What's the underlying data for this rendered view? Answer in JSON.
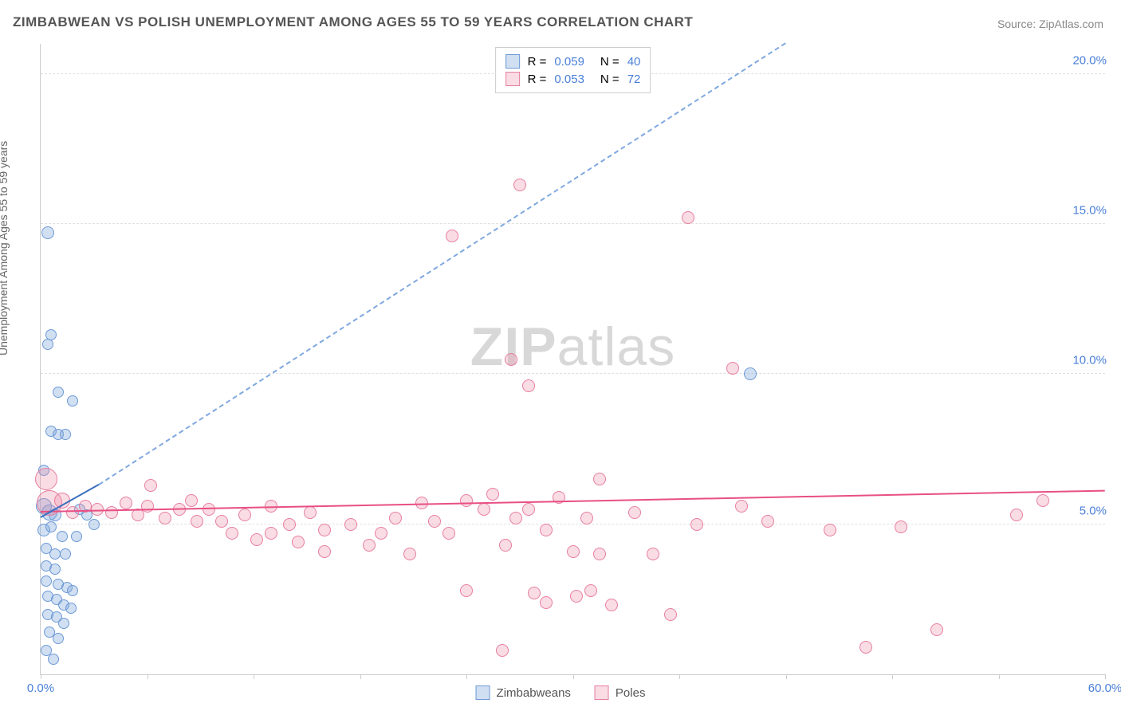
{
  "title": "ZIMBABWEAN VS POLISH UNEMPLOYMENT AMONG AGES 55 TO 59 YEARS CORRELATION CHART",
  "source": "Source: ZipAtlas.com",
  "ylabel": "Unemployment Among Ages 55 to 59 years",
  "watermark_a": "ZIP",
  "watermark_b": "atlas",
  "chart": {
    "type": "scatter",
    "xlim": [
      0,
      60
    ],
    "ylim": [
      0,
      21
    ],
    "x_ticks": [
      0,
      6,
      12,
      18,
      24,
      30,
      36,
      42,
      48,
      54,
      60
    ],
    "x_tick_labels": {
      "0": "0.0%",
      "60": "60.0%"
    },
    "y_ticks": [
      5,
      10,
      15,
      20
    ],
    "y_tick_labels": {
      "5": "5.0%",
      "10": "10.0%",
      "15": "15.0%",
      "20": "20.0%"
    },
    "grid_color": "#e0e0e0",
    "axis_color": "#cccccc",
    "label_color_axis": "#4a7fd8",
    "background": "#ffffff",
    "series": [
      {
        "name": "Zimbabweans",
        "fill": "rgba(122,162,219,0.35)",
        "stroke": "#6d9ad6",
        "r_value": "0.059",
        "n_value": "40",
        "trend": {
          "x1": 0,
          "y1": 5.2,
          "x2": 3.3,
          "y2": 6.3,
          "solid_color": "#3b6fbf",
          "dash_x2": 42,
          "dash_y2": 21,
          "dash_color": "#7fa8e0"
        },
        "points": [
          {
            "x": 0.4,
            "y": 14.7,
            "r": 8
          },
          {
            "x": 0.4,
            "y": 11.0,
            "r": 7
          },
          {
            "x": 0.6,
            "y": 11.3,
            "r": 7
          },
          {
            "x": 1.0,
            "y": 9.4,
            "r": 7
          },
          {
            "x": 1.8,
            "y": 9.1,
            "r": 7
          },
          {
            "x": 0.6,
            "y": 8.1,
            "r": 7
          },
          {
            "x": 1.0,
            "y": 8.0,
            "r": 7
          },
          {
            "x": 1.4,
            "y": 8.0,
            "r": 7
          },
          {
            "x": 0.2,
            "y": 6.8,
            "r": 7
          },
          {
            "x": 0.2,
            "y": 5.6,
            "r": 10
          },
          {
            "x": 0.5,
            "y": 5.4,
            "r": 10
          },
          {
            "x": 0.8,
            "y": 5.3,
            "r": 8
          },
          {
            "x": 0.2,
            "y": 4.8,
            "r": 8
          },
          {
            "x": 0.6,
            "y": 4.9,
            "r": 7
          },
          {
            "x": 1.2,
            "y": 4.6,
            "r": 7
          },
          {
            "x": 2.0,
            "y": 4.6,
            "r": 7
          },
          {
            "x": 0.3,
            "y": 4.2,
            "r": 7
          },
          {
            "x": 0.8,
            "y": 4.0,
            "r": 7
          },
          {
            "x": 1.4,
            "y": 4.0,
            "r": 7
          },
          {
            "x": 0.3,
            "y": 3.6,
            "r": 7
          },
          {
            "x": 0.8,
            "y": 3.5,
            "r": 7
          },
          {
            "x": 0.3,
            "y": 3.1,
            "r": 7
          },
          {
            "x": 1.0,
            "y": 3.0,
            "r": 7
          },
          {
            "x": 1.5,
            "y": 2.9,
            "r": 7
          },
          {
            "x": 1.8,
            "y": 2.8,
            "r": 7
          },
          {
            "x": 0.4,
            "y": 2.6,
            "r": 7
          },
          {
            "x": 0.9,
            "y": 2.5,
            "r": 7
          },
          {
            "x": 1.3,
            "y": 2.3,
            "r": 7
          },
          {
            "x": 1.7,
            "y": 2.2,
            "r": 7
          },
          {
            "x": 0.4,
            "y": 2.0,
            "r": 7
          },
          {
            "x": 0.9,
            "y": 1.9,
            "r": 7
          },
          {
            "x": 1.3,
            "y": 1.7,
            "r": 7
          },
          {
            "x": 0.5,
            "y": 1.4,
            "r": 7
          },
          {
            "x": 1.0,
            "y": 1.2,
            "r": 7
          },
          {
            "x": 2.2,
            "y": 5.5,
            "r": 7
          },
          {
            "x": 2.6,
            "y": 5.3,
            "r": 7
          },
          {
            "x": 3.0,
            "y": 5.0,
            "r": 7
          },
          {
            "x": 0.3,
            "y": 0.8,
            "r": 7
          },
          {
            "x": 40.0,
            "y": 10.0,
            "r": 8
          },
          {
            "x": 0.7,
            "y": 0.5,
            "r": 7
          }
        ]
      },
      {
        "name": "Poles",
        "fill": "rgba(235,140,165,0.30)",
        "stroke": "#e77ea0",
        "r_value": "0.053",
        "n_value": "72",
        "trend": {
          "x1": 0,
          "y1": 5.4,
          "x2": 60,
          "y2": 6.1,
          "solid_color": "#e84f84"
        },
        "points": [
          {
            "x": 0.3,
            "y": 6.5,
            "r": 14
          },
          {
            "x": 0.5,
            "y": 5.7,
            "r": 16
          },
          {
            "x": 1.2,
            "y": 5.8,
            "r": 10
          },
          {
            "x": 1.8,
            "y": 5.4,
            "r": 8
          },
          {
            "x": 2.5,
            "y": 5.6,
            "r": 8
          },
          {
            "x": 3.2,
            "y": 5.5,
            "r": 8
          },
          {
            "x": 4.0,
            "y": 5.4,
            "r": 8
          },
          {
            "x": 4.8,
            "y": 5.7,
            "r": 8
          },
          {
            "x": 5.5,
            "y": 5.3,
            "r": 8
          },
          {
            "x": 6.2,
            "y": 6.3,
            "r": 8
          },
          {
            "x": 6.0,
            "y": 5.6,
            "r": 8
          },
          {
            "x": 7.0,
            "y": 5.2,
            "r": 8
          },
          {
            "x": 7.8,
            "y": 5.5,
            "r": 8
          },
          {
            "x": 8.5,
            "y": 5.8,
            "r": 8
          },
          {
            "x": 8.8,
            "y": 5.1,
            "r": 8
          },
          {
            "x": 9.5,
            "y": 5.5,
            "r": 8
          },
          {
            "x": 10.2,
            "y": 5.1,
            "r": 8
          },
          {
            "x": 10.8,
            "y": 4.7,
            "r": 8
          },
          {
            "x": 11.5,
            "y": 5.3,
            "r": 8
          },
          {
            "x": 12.2,
            "y": 4.5,
            "r": 8
          },
          {
            "x": 13.0,
            "y": 5.6,
            "r": 8
          },
          {
            "x": 13.0,
            "y": 4.7,
            "r": 8
          },
          {
            "x": 14.0,
            "y": 5.0,
            "r": 8
          },
          {
            "x": 14.5,
            "y": 4.4,
            "r": 8
          },
          {
            "x": 15.2,
            "y": 5.4,
            "r": 8
          },
          {
            "x": 16.0,
            "y": 4.8,
            "r": 8
          },
          {
            "x": 16.0,
            "y": 4.1,
            "r": 8
          },
          {
            "x": 17.5,
            "y": 5.0,
            "r": 8
          },
          {
            "x": 18.5,
            "y": 4.3,
            "r": 8
          },
          {
            "x": 19.2,
            "y": 4.7,
            "r": 8
          },
          {
            "x": 20.0,
            "y": 5.2,
            "r": 8
          },
          {
            "x": 20.8,
            "y": 4.0,
            "r": 8
          },
          {
            "x": 21.5,
            "y": 5.7,
            "r": 8
          },
          {
            "x": 22.2,
            "y": 5.1,
            "r": 8
          },
          {
            "x": 23.0,
            "y": 4.7,
            "r": 8
          },
          {
            "x": 23.2,
            "y": 14.6,
            "r": 8
          },
          {
            "x": 24.0,
            "y": 5.8,
            "r": 8
          },
          {
            "x": 24.0,
            "y": 2.8,
            "r": 8
          },
          {
            "x": 25.0,
            "y": 5.5,
            "r": 8
          },
          {
            "x": 25.5,
            "y": 6.0,
            "r": 8
          },
          {
            "x": 26.2,
            "y": 4.3,
            "r": 8
          },
          {
            "x": 26.5,
            "y": 10.5,
            "r": 8
          },
          {
            "x": 26.8,
            "y": 5.2,
            "r": 8
          },
          {
            "x": 26.0,
            "y": 0.8,
            "r": 8
          },
          {
            "x": 27.0,
            "y": 16.3,
            "r": 8
          },
          {
            "x": 27.5,
            "y": 5.5,
            "r": 8
          },
          {
            "x": 27.8,
            "y": 2.7,
            "r": 8
          },
          {
            "x": 28.5,
            "y": 4.8,
            "r": 8
          },
          {
            "x": 28.5,
            "y": 2.4,
            "r": 8
          },
          {
            "x": 27.5,
            "y": 9.6,
            "r": 8
          },
          {
            "x": 29.2,
            "y": 5.9,
            "r": 8
          },
          {
            "x": 30.0,
            "y": 4.1,
            "r": 8
          },
          {
            "x": 30.2,
            "y": 2.6,
            "r": 8
          },
          {
            "x": 30.8,
            "y": 5.2,
            "r": 8
          },
          {
            "x": 31.5,
            "y": 6.5,
            "r": 8
          },
          {
            "x": 31.0,
            "y": 2.8,
            "r": 8
          },
          {
            "x": 31.5,
            "y": 4.0,
            "r": 8
          },
          {
            "x": 32.2,
            "y": 2.3,
            "r": 8
          },
          {
            "x": 33.5,
            "y": 5.4,
            "r": 8
          },
          {
            "x": 34.5,
            "y": 4.0,
            "r": 8
          },
          {
            "x": 35.5,
            "y": 2.0,
            "r": 8
          },
          {
            "x": 36.5,
            "y": 15.2,
            "r": 8
          },
          {
            "x": 37.0,
            "y": 5.0,
            "r": 8
          },
          {
            "x": 39.0,
            "y": 10.2,
            "r": 8
          },
          {
            "x": 39.5,
            "y": 5.6,
            "r": 8
          },
          {
            "x": 41.0,
            "y": 5.1,
            "r": 8
          },
          {
            "x": 44.5,
            "y": 4.8,
            "r": 8
          },
          {
            "x": 46.5,
            "y": 0.9,
            "r": 8
          },
          {
            "x": 48.5,
            "y": 4.9,
            "r": 8
          },
          {
            "x": 50.5,
            "y": 1.5,
            "r": 8
          },
          {
            "x": 55.0,
            "y": 5.3,
            "r": 8
          },
          {
            "x": 56.5,
            "y": 5.8,
            "r": 8
          }
        ]
      }
    ]
  },
  "legend_top": {
    "r_label": "R =",
    "n_label": "N ="
  },
  "legend_bottom": [
    "Zimbabweans",
    "Poles"
  ]
}
